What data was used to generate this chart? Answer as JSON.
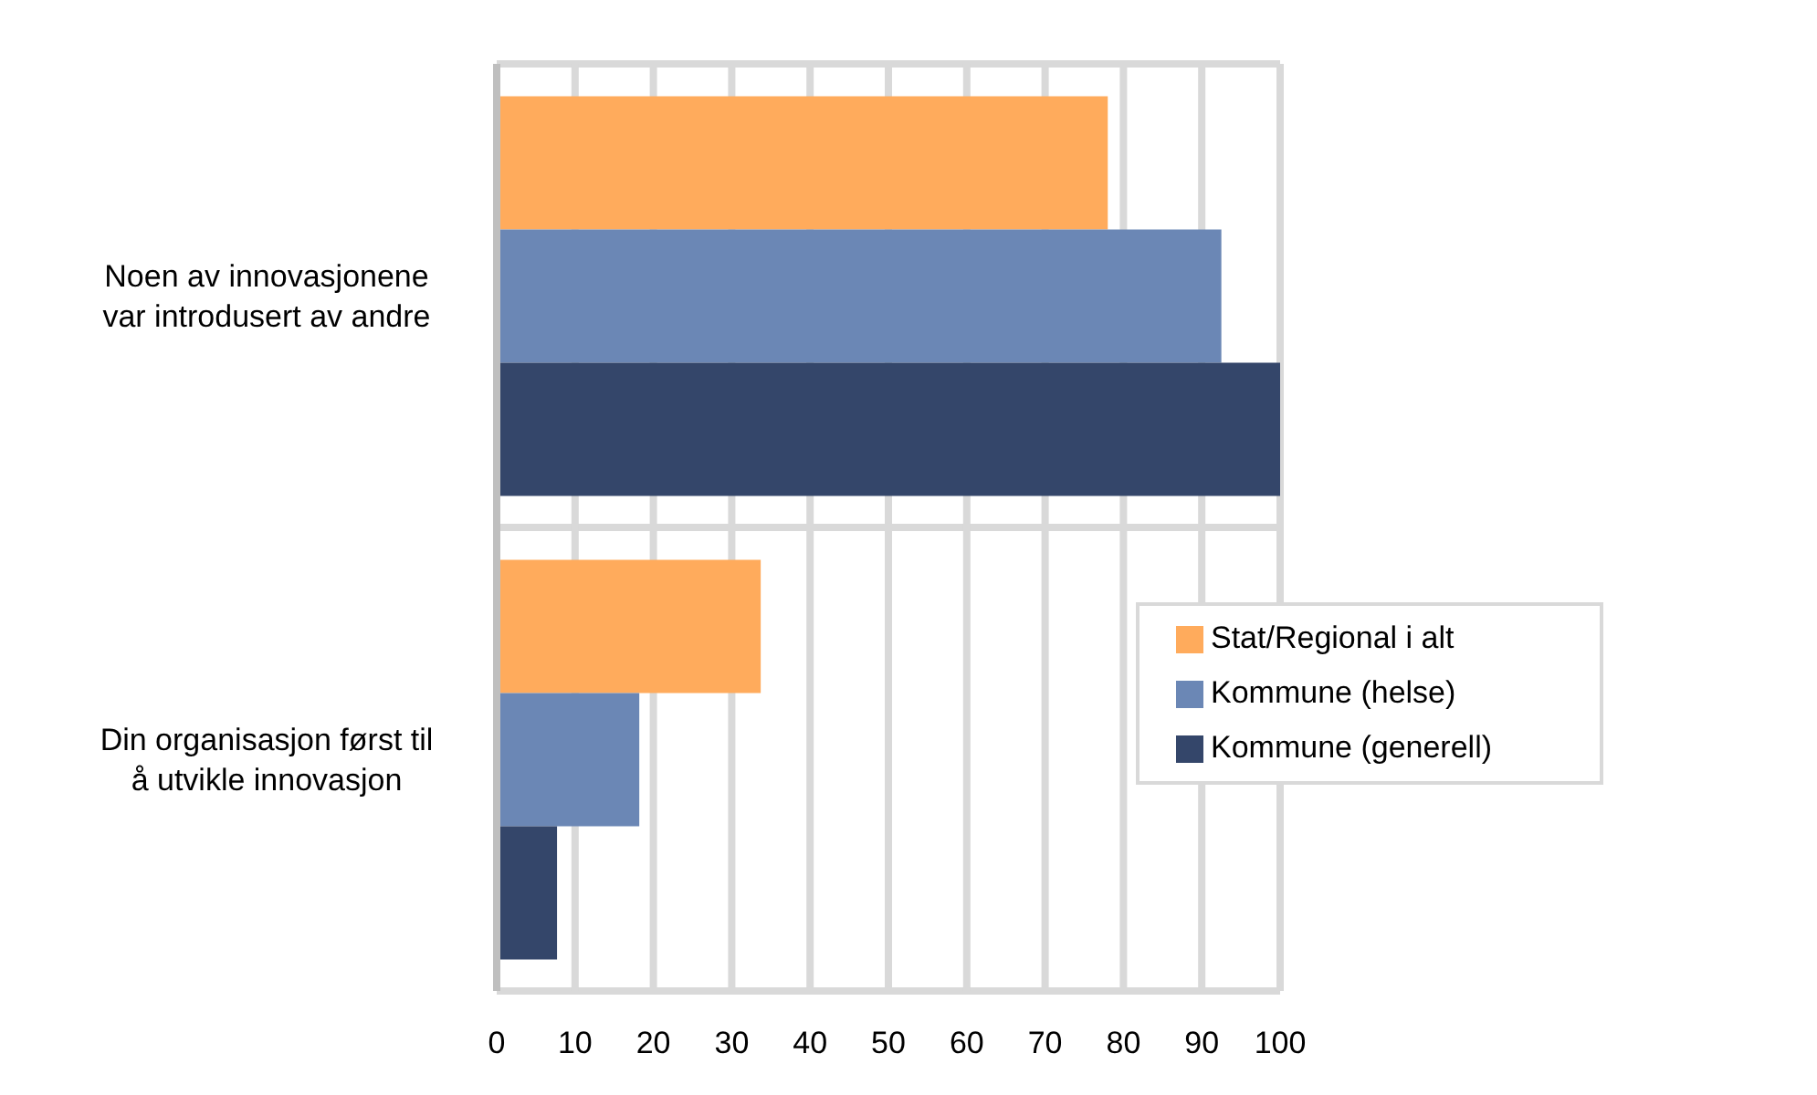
{
  "chart_data": {
    "type": "bar",
    "orientation": "horizontal",
    "categories": [
      "Noen av innovasjonene\nvar introdusert av andre",
      "Din organisasjon først til\nå utvikle innovasjon"
    ],
    "series": [
      {
        "name": "Stat/Regional i alt",
        "color": "#ffab5c",
        "values": [
          78,
          33.7
        ]
      },
      {
        "name": "Kommune (helse)",
        "color": "#6b87b5",
        "values": [
          92.5,
          18.2
        ]
      },
      {
        "name": "Kommune (generell)",
        "color": "#34466a",
        "values": [
          100,
          7.7
        ]
      }
    ],
    "xlim": [
      0,
      100
    ],
    "xticks": [
      0,
      10,
      20,
      30,
      40,
      50,
      60,
      70,
      80,
      90,
      100
    ],
    "grid": true,
    "legend": "right"
  }
}
